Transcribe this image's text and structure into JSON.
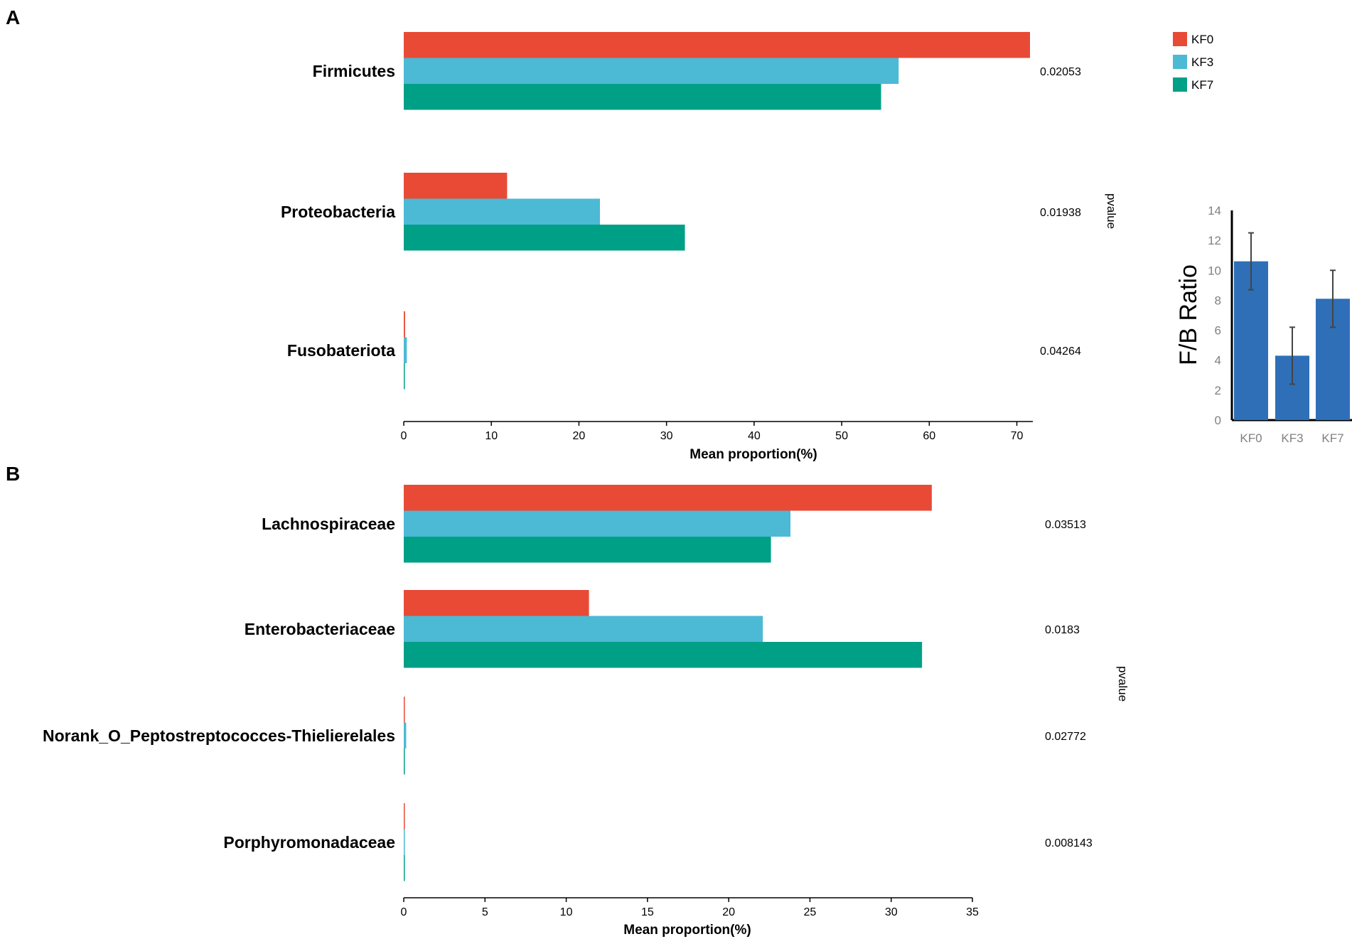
{
  "colors": {
    "KF0": "#e84a35",
    "KF3": "#4cb9d5",
    "KF7": "#00a087",
    "ratio_bar": "#2e6fb8",
    "axis": "#000000",
    "ratio_tick": "#808080"
  },
  "panels": {
    "a_label": "A",
    "b_label": "B"
  },
  "legend": {
    "items": [
      "KF0",
      "KF3",
      "KF7"
    ]
  },
  "chart_data": [
    {
      "type": "bar",
      "orientation": "horizontal",
      "panel": "A",
      "categories": [
        "Firmicutes",
        "Proteobacteria",
        "Fusobateriota"
      ],
      "series": [
        {
          "name": "KF0",
          "values": [
            71.5,
            11.8,
            0.15
          ]
        },
        {
          "name": "KF3",
          "values": [
            56.5,
            22.4,
            0.35
          ]
        },
        {
          "name": "KF7",
          "values": [
            54.5,
            32.1,
            0.1
          ]
        }
      ],
      "pvalues": [
        "0.02053",
        "0.01938",
        "0.04264"
      ],
      "pvalue_label": "pvalue",
      "xlabel": "Mean proportion(%)",
      "xlim": [
        0,
        72
      ],
      "xticks": [
        0,
        10,
        20,
        30,
        40,
        50,
        60,
        70
      ]
    },
    {
      "type": "bar",
      "panel": "A-inset",
      "categories": [
        "KF0",
        "KF3",
        "KF7"
      ],
      "values": [
        10.6,
        4.3,
        8.1
      ],
      "errors": [
        1.9,
        1.9,
        1.9
      ],
      "ylabel": "F/B Ratio",
      "ylim": [
        0,
        14
      ],
      "yticks": [
        0,
        2,
        4,
        6,
        8,
        10,
        12,
        14
      ]
    },
    {
      "type": "bar",
      "orientation": "horizontal",
      "panel": "B",
      "categories": [
        "Lachnospiraceae",
        "Enterobacteriaceae",
        "Norank_O_Peptostreptococces-Thielierelales",
        "Porphyromonadaceae"
      ],
      "series": [
        {
          "name": "KF0",
          "values": [
            32.5,
            11.4,
            0.05,
            0.01
          ]
        },
        {
          "name": "KF3",
          "values": [
            23.8,
            22.1,
            0.15,
            0.05
          ]
        },
        {
          "name": "KF7",
          "values": [
            22.6,
            31.9,
            0.05,
            0.01
          ]
        }
      ],
      "pvalues": [
        "0.03513",
        "0.0183",
        "0.02772",
        "0.008143"
      ],
      "pvalue_label": "pvalue",
      "xlabel": "Mean proportion(%)",
      "xlim": [
        0,
        35
      ],
      "xticks": [
        0,
        5,
        10,
        15,
        20,
        25,
        30,
        35
      ]
    }
  ]
}
